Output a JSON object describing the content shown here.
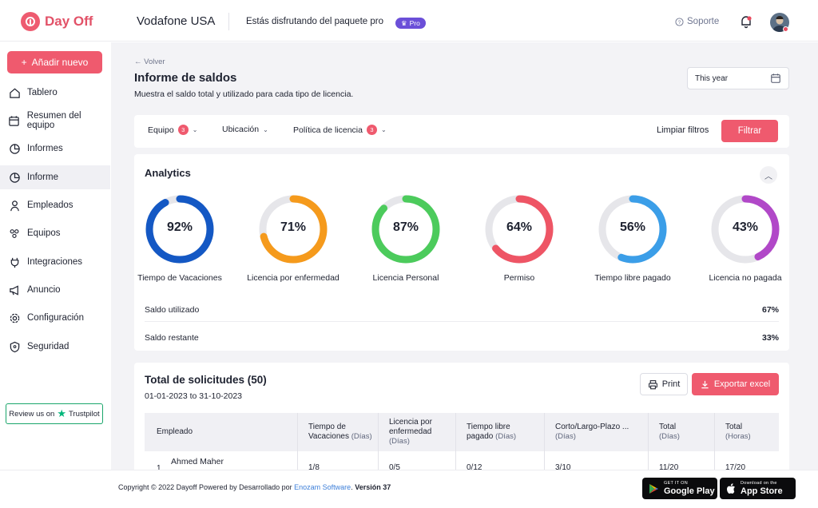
{
  "app": {
    "brand": "Day Off",
    "company": "Vodafone USA",
    "plan_text": "Estás disfrutando del paquete pro",
    "plan_badge": "Pro",
    "support": "Soporte"
  },
  "sidebar": {
    "add_button": "Añadir nuevo",
    "items": [
      {
        "label": "Tablero",
        "icon": "home-icon"
      },
      {
        "label": "Resumen del equipo",
        "icon": "calendar-icon"
      },
      {
        "label": "Informes",
        "icon": "pie-chart-icon"
      },
      {
        "label": "Informe",
        "icon": "pie-chart-icon",
        "active": true
      },
      {
        "label": "Empleados",
        "icon": "user-icon"
      },
      {
        "label": "Equipos",
        "icon": "team-icon"
      },
      {
        "label": "Integraciones",
        "icon": "plug-icon"
      },
      {
        "label": "Anuncio",
        "icon": "megaphone-icon"
      },
      {
        "label": "Configuración",
        "icon": "gear-icon"
      },
      {
        "label": "Seguridad",
        "icon": "shield-icon"
      }
    ],
    "trustpilot": {
      "prefix": "Review us on",
      "brand": "Trustpilot"
    }
  },
  "page": {
    "back": "Volver",
    "title": "Informe de saldos",
    "subtitle": "Muestra el saldo total y utilizado para cada tipo de licencia.",
    "date_range": "This year"
  },
  "filters": {
    "items": [
      {
        "label": "Equipo",
        "count": "3"
      },
      {
        "label": "Ubicación",
        "count": ""
      },
      {
        "label": "Política de licencia",
        "count": "3"
      }
    ],
    "clear": "Limpiar filtros",
    "apply": "Filtrar"
  },
  "analytics": {
    "title": "Analytics",
    "gauges": [
      {
        "label": "Tiempo de Vacaciones",
        "value": "92%",
        "fraction": 0.92,
        "color": "#1458c4"
      },
      {
        "label": "Licencia por enfermedad",
        "value": "71%",
        "fraction": 0.71,
        "color": "#f59a1c"
      },
      {
        "label": "Licencia Personal",
        "value": "87%",
        "fraction": 0.87,
        "color": "#4ccb5c"
      },
      {
        "label": "Permiso",
        "value": "64%",
        "fraction": 0.64,
        "color": "#ee5565"
      },
      {
        "label": "Tiempo libre pagado",
        "value": "56%",
        "fraction": 0.56,
        "color": "#3b9ee8"
      },
      {
        "label": "Licencia no pagada",
        "value": "43%",
        "fraction": 0.43,
        "color": "#b148c8"
      }
    ],
    "used_label": "Saldo utilizado",
    "used_value": "67%",
    "remaining_label": "Saldo restante",
    "remaining_value": "33%"
  },
  "requests": {
    "title": "Total de solicitudes (50)",
    "dates": "01-01-2023 to 31-10-2023",
    "print": "Print",
    "export": "Exportar excel",
    "columns": [
      {
        "label": "Empleado",
        "unit": ""
      },
      {
        "label": "Tiempo de",
        "label2": "Vacaciones",
        "unit": "(Días)"
      },
      {
        "label": "Licencia por",
        "label2": "enfermedad",
        "unit": "(Días)"
      },
      {
        "label": "Tiempo libre",
        "label2": "pagado",
        "unit": "(Días)"
      },
      {
        "label": "Corto/Largo-Plazo ...",
        "label2": "",
        "unit": "(Días)"
      },
      {
        "label": "Total",
        "label2": "",
        "unit": "(Días)"
      },
      {
        "label": "Total",
        "label2": "",
        "unit": "(Horas)"
      }
    ],
    "rows": [
      {
        "index": "1",
        "name": "Ahmed Maher",
        "vacation": "1/8",
        "sick": "0/5",
        "paid": "0/12",
        "term": "3/10",
        "total_days": "11/20",
        "total_hours": "17/20"
      }
    ]
  },
  "footer": {
    "copyright": "Copyright © 2022 Dayoff",
    "powered": "Powered by",
    "developed": "Desarrollado por",
    "developer": "Enozam Software",
    "version": "Versión 37",
    "google_small": "GET IT ON",
    "google_big": "Google Play",
    "apple_small": "Download on the",
    "apple_big": "App Store"
  }
}
